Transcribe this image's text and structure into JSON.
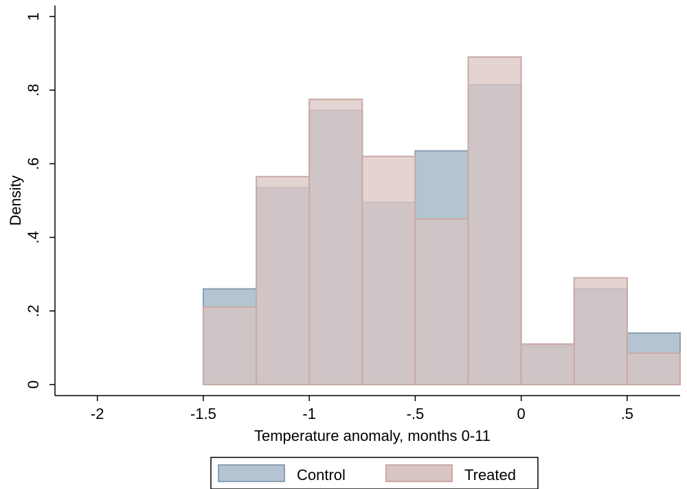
{
  "chart_data": {
    "type": "bar",
    "xlabel": "Temperature anomaly, months 0-11",
    "ylabel": "Density",
    "xlim": [
      -2.2,
      0.75
    ],
    "ylim": [
      -0.03,
      1.03
    ],
    "x_ticks": [
      {
        "value": -2,
        "label": "-2"
      },
      {
        "value": -1.5,
        "label": "-1.5"
      },
      {
        "value": -1,
        "label": "-1"
      },
      {
        "value": -0.5,
        "label": "-.5"
      },
      {
        "value": 0,
        "label": "0"
      },
      {
        "value": 0.5,
        "label": ".5"
      }
    ],
    "y_ticks": [
      {
        "value": 0,
        "label": "0"
      },
      {
        "value": 0.2,
        "label": ".2"
      },
      {
        "value": 0.4,
        "label": ".4"
      },
      {
        "value": 0.6,
        "label": ".6"
      },
      {
        "value": 0.8,
        "label": ".8"
      },
      {
        "value": 1,
        "label": "1"
      }
    ],
    "bin_edges": [
      -1.5,
      -1.25,
      -1.0,
      -0.75,
      -0.5,
      -0.25,
      0.0,
      0.25,
      0.5,
      0.75
    ],
    "series": [
      {
        "name": "Control",
        "color": "#b5c4d1",
        "values": [
          0.26,
          0.535,
          0.745,
          0.495,
          0.635,
          0.815,
          0.105,
          0.26,
          0.14
        ]
      },
      {
        "name": "Treated",
        "color": "#d9c5c1",
        "values": [
          0.21,
          0.565,
          0.775,
          0.62,
          0.45,
          0.89,
          0.11,
          0.29,
          0.085
        ]
      }
    ],
    "legend_position": "bottom",
    "grid": false
  }
}
